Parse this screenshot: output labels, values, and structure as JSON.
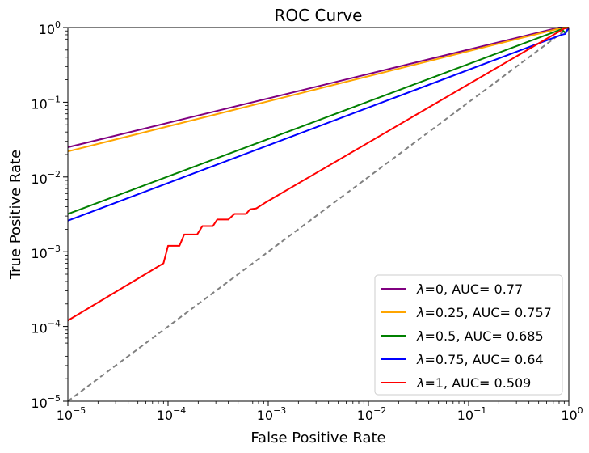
{
  "chart_data": {
    "type": "line",
    "title": "ROC Curve",
    "xlabel": "False Positive Rate",
    "ylabel": "True Positive Rate",
    "xscale": "log",
    "yscale": "log",
    "xlim": [
      1e-05,
      1
    ],
    "ylim": [
      1e-05,
      1
    ],
    "x_ticks": [
      {
        "value": 1e-05,
        "label": "10",
        "exp": "−5"
      },
      {
        "value": 0.0001,
        "label": "10",
        "exp": "−4"
      },
      {
        "value": 0.001,
        "label": "10",
        "exp": "−3"
      },
      {
        "value": 0.01,
        "label": "10",
        "exp": "−2"
      },
      {
        "value": 0.1,
        "label": "10",
        "exp": "−1"
      },
      {
        "value": 1,
        "label": "10",
        "exp": "0"
      }
    ],
    "y_ticks": [
      {
        "value": 1e-05,
        "label": "10",
        "exp": "−5"
      },
      {
        "value": 0.0001,
        "label": "10",
        "exp": "−4"
      },
      {
        "value": 0.001,
        "label": "10",
        "exp": "−3"
      },
      {
        "value": 0.01,
        "label": "10",
        "exp": "−2"
      },
      {
        "value": 0.1,
        "label": "10",
        "exp": "−1"
      },
      {
        "value": 1,
        "label": "10",
        "exp": "0"
      }
    ],
    "legend_position": "lower-right",
    "series": [
      {
        "name": "λ=0, AUC= 0.77",
        "legend_prefix": "λ",
        "legend_suffix": "=0, AUC= 0.77",
        "color": "#800080",
        "points": [
          [
            1e-05,
            0.025
          ],
          [
            0.8,
            1.0
          ],
          [
            1.0,
            1.0
          ]
        ]
      },
      {
        "name": "λ=0.25, AUC= 0.757",
        "legend_prefix": "λ",
        "legend_suffix": "=0.25, AUC= 0.757",
        "color": "#ffa500",
        "points": [
          [
            1e-05,
            0.022
          ],
          [
            0.88,
            1.0
          ],
          [
            1.0,
            1.0
          ]
        ]
      },
      {
        "name": "λ=0.5, AUC= 0.685",
        "legend_prefix": "λ",
        "legend_suffix": "=0.5, AUC= 0.685",
        "color": "#008000",
        "points": [
          [
            1e-05,
            0.0032
          ],
          [
            0.85,
            0.95
          ],
          [
            0.92,
            0.85
          ],
          [
            1.0,
            1.0
          ]
        ]
      },
      {
        "name": "λ=0.75, AUC= 0.64",
        "legend_prefix": "λ",
        "legend_suffix": "=0.75, AUC= 0.64",
        "color": "#0000ff",
        "points": [
          [
            1e-05,
            0.0026
          ],
          [
            0.85,
            0.8
          ],
          [
            0.92,
            0.82
          ],
          [
            1.0,
            1.0
          ]
        ]
      },
      {
        "name": "λ=1, AUC= 0.509",
        "legend_prefix": "λ",
        "legend_suffix": "=1, AUC= 0.509",
        "color": "#ff0000",
        "points": [
          [
            1e-05,
            0.00012
          ],
          [
            9e-05,
            0.0007
          ],
          [
            0.0001,
            0.0012
          ],
          [
            0.00013,
            0.0012
          ],
          [
            0.000145,
            0.0017
          ],
          [
            0.000195,
            0.0017
          ],
          [
            0.00022,
            0.0022
          ],
          [
            0.00028,
            0.0022
          ],
          [
            0.00031,
            0.0027
          ],
          [
            0.0004,
            0.0027
          ],
          [
            0.00046,
            0.0032
          ],
          [
            0.0006,
            0.0032
          ],
          [
            0.00066,
            0.0037
          ],
          [
            0.00076,
            0.0038
          ],
          [
            0.00095,
            0.0046
          ],
          [
            0.9,
            0.97
          ],
          [
            1.0,
            1.0
          ]
        ]
      }
    ],
    "reference_line": {
      "name": "chance",
      "color": "#808080",
      "style": "dashed",
      "points": [
        [
          1e-05,
          1e-05
        ],
        [
          1.0,
          1.0
        ]
      ]
    }
  }
}
